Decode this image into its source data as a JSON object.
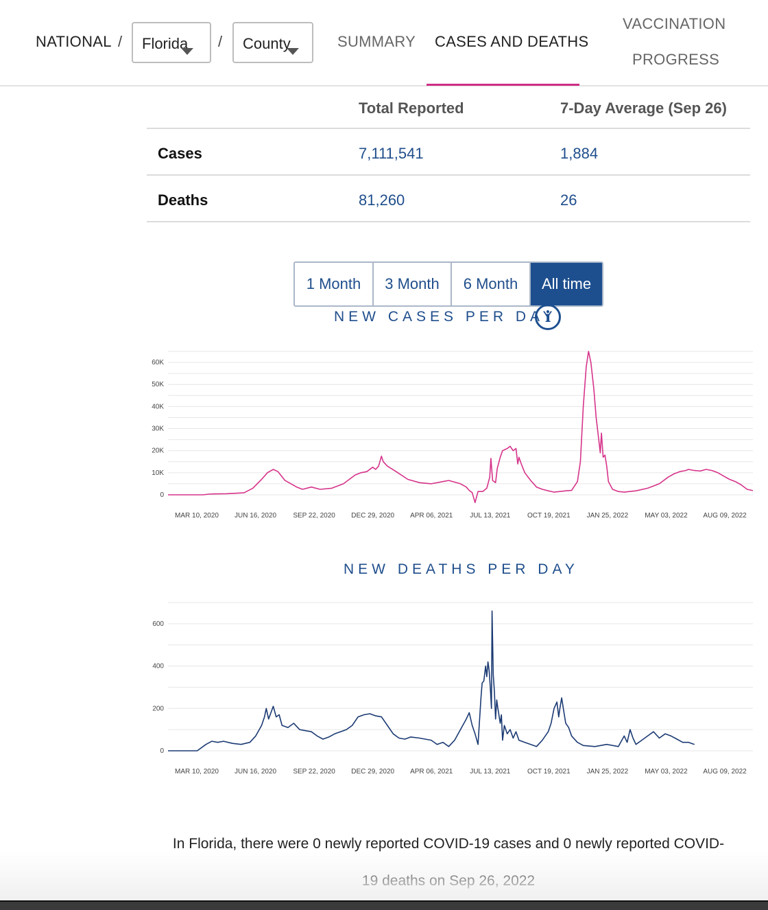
{
  "nav": {
    "national": "NATIONAL",
    "separator": "/",
    "state_select": "Florida",
    "county_select": "County",
    "tabs": [
      {
        "label": "SUMMARY"
      },
      {
        "label": "CASES AND DEATHS"
      },
      {
        "label_line1": "VACCINATION",
        "label_line2": "PROGRESS"
      }
    ]
  },
  "summary_table": {
    "headers": [
      "",
      "Total Reported",
      "7-Day Average (Sep 26)"
    ],
    "rows": [
      {
        "label": "Cases",
        "total": "7,111,541",
        "avg": "1,884"
      },
      {
        "label": "Deaths",
        "total": "81,260",
        "avg": "26"
      }
    ]
  },
  "range_buttons": [
    "1 Month",
    "3 Month",
    "6 Month",
    "All time"
  ],
  "range_selected": "All time",
  "info_icon_glyph": "i",
  "footer": {
    "line1": "In Florida, there were 0 newly reported COVID-19 cases and 0 newly reported COVID-",
    "line2": "19 deaths on Sep 26, 2022"
  },
  "colors": {
    "cases_line": "#d6338a",
    "deaths_line": "#1b3a73",
    "accent": "#1d4f8f"
  },
  "chart_data": [
    {
      "type": "line",
      "title": "NEW CASES PER DAY",
      "x_ticks": [
        "MAR 10, 2020",
        "JUN 16, 2020",
        "SEP 22, 2020",
        "DEC 29, 2020",
        "APR 06, 2021",
        "JUL 13, 2021",
        "OCT 19, 2021",
        "JAN 25, 2022",
        "MAY 03, 2022",
        "AUG 09, 2022"
      ],
      "y_ticks": [
        0,
        10000,
        20000,
        30000,
        40000,
        50000,
        60000
      ],
      "y_tick_labels": [
        "0",
        "10K",
        "20K",
        "30K",
        "40K",
        "50K",
        "60K"
      ],
      "ylim": [
        0,
        65000
      ],
      "x_range_days": [
        -10,
        990
      ],
      "series": [
        {
          "name": "New cases",
          "points": [
            [
              -10,
              0
            ],
            [
              20,
              0
            ],
            [
              50,
              0
            ],
            [
              60,
              300
            ],
            [
              70,
              400
            ],
            [
              90,
              500
            ],
            [
              120,
              900
            ],
            [
              135,
              3000
            ],
            [
              150,
              7000
            ],
            [
              160,
              10000
            ],
            [
              170,
              11500
            ],
            [
              178,
              10500
            ],
            [
              190,
              6500
            ],
            [
              210,
              3500
            ],
            [
              220,
              2500
            ],
            [
              235,
              3500
            ],
            [
              250,
              2500
            ],
            [
              270,
              3000
            ],
            [
              290,
              5000
            ],
            [
              300,
              7000
            ],
            [
              310,
              9000
            ],
            [
              320,
              10000
            ],
            [
              330,
              10500
            ],
            [
              340,
              12500
            ],
            [
              345,
              11500
            ],
            [
              350,
              13000
            ],
            [
              355,
              17500
            ],
            [
              358,
              15000
            ],
            [
              365,
              13000
            ],
            [
              380,
              10500
            ],
            [
              400,
              7000
            ],
            [
              420,
              5500
            ],
            [
              440,
              5000
            ],
            [
              460,
              6000
            ],
            [
              470,
              6500
            ],
            [
              490,
              5000
            ],
            [
              500,
              3500
            ],
            [
              505,
              2000
            ],
            [
              510,
              1000
            ],
            [
              515,
              -3500
            ],
            [
              520,
              1500
            ],
            [
              528,
              1500
            ],
            [
              535,
              3000
            ],
            [
              540,
              8000
            ],
            [
              542,
              16500
            ],
            [
              545,
              6500
            ],
            [
              550,
              5500
            ],
            [
              553,
              12000
            ],
            [
              558,
              17000
            ],
            [
              562,
              20000
            ],
            [
              570,
              21000
            ],
            [
              575,
              22000
            ],
            [
              580,
              20000
            ],
            [
              585,
              21000
            ],
            [
              588,
              14000
            ],
            [
              590,
              17000
            ],
            [
              594,
              14000
            ],
            [
              600,
              10000
            ],
            [
              610,
              6500
            ],
            [
              620,
              3500
            ],
            [
              630,
              2500
            ],
            [
              640,
              1800
            ],
            [
              650,
              1200
            ],
            [
              660,
              1500
            ],
            [
              670,
              1800
            ],
            [
              680,
              2000
            ],
            [
              690,
              6000
            ],
            [
              695,
              15000
            ],
            [
              700,
              40000
            ],
            [
              705,
              58000
            ],
            [
              709,
              65000
            ],
            [
              713,
              60000
            ],
            [
              718,
              48000
            ],
            [
              722,
              35000
            ],
            [
              726,
              26000
            ],
            [
              729,
              19000
            ],
            [
              731,
              28000
            ],
            [
              734,
              17000
            ],
            [
              737,
              18000
            ],
            [
              740,
              13000
            ],
            [
              743,
              6000
            ],
            [
              750,
              2500
            ],
            [
              760,
              1500
            ],
            [
              770,
              1200
            ],
            [
              790,
              1800
            ],
            [
              810,
              3000
            ],
            [
              830,
              5000
            ],
            [
              845,
              8000
            ],
            [
              855,
              9500
            ],
            [
              865,
              10500
            ],
            [
              875,
              11000
            ],
            [
              880,
              11500
            ],
            [
              890,
              11000
            ],
            [
              900,
              10800
            ],
            [
              910,
              11500
            ],
            [
              920,
              11000
            ],
            [
              930,
              10000
            ],
            [
              940,
              8500
            ],
            [
              950,
              7000
            ],
            [
              960,
              6000
            ],
            [
              970,
              4500
            ],
            [
              980,
              2500
            ],
            [
              990,
              1900
            ]
          ]
        }
      ]
    },
    {
      "type": "line",
      "title": "NEW DEATHS PER DAY",
      "x_ticks": [
        "MAR 10, 2020",
        "JUN 16, 2020",
        "SEP 22, 2020",
        "DEC 29, 2020",
        "APR 06, 2021",
        "JUL 13, 2021",
        "OCT 19, 2021",
        "JAN 25, 2022",
        "MAY 03, 2022",
        "AUG 09, 2022"
      ],
      "y_ticks": [
        0,
        200,
        400,
        600
      ],
      "y_tick_labels": [
        "0",
        "200",
        "400",
        "600"
      ],
      "ylim": [
        0,
        700
      ],
      "x_range_days": [
        -10,
        990
      ],
      "series": [
        {
          "name": "New deaths",
          "points": [
            [
              -10,
              0
            ],
            [
              40,
              0
            ],
            [
              55,
              30
            ],
            [
              65,
              45
            ],
            [
              75,
              40
            ],
            [
              85,
              45
            ],
            [
              100,
              35
            ],
            [
              115,
              30
            ],
            [
              130,
              40
            ],
            [
              140,
              70
            ],
            [
              150,
              120
            ],
            [
              155,
              160
            ],
            [
              158,
              200
            ],
            [
              162,
              150
            ],
            [
              166,
              180
            ],
            [
              170,
              210
            ],
            [
              175,
              160
            ],
            [
              180,
              170
            ],
            [
              185,
              120
            ],
            [
              195,
              110
            ],
            [
              205,
              130
            ],
            [
              215,
              100
            ],
            [
              225,
              95
            ],
            [
              235,
              90
            ],
            [
              245,
              70
            ],
            [
              255,
              55
            ],
            [
              265,
              65
            ],
            [
              275,
              80
            ],
            [
              285,
              90
            ],
            [
              295,
              100
            ],
            [
              305,
              120
            ],
            [
              315,
              160
            ],
            [
              325,
              170
            ],
            [
              335,
              175
            ],
            [
              345,
              165
            ],
            [
              355,
              160
            ],
            [
              365,
              120
            ],
            [
              375,
              80
            ],
            [
              385,
              60
            ],
            [
              395,
              55
            ],
            [
              405,
              65
            ],
            [
              420,
              60
            ],
            [
              440,
              50
            ],
            [
              450,
              30
            ],
            [
              460,
              40
            ],
            [
              470,
              20
            ],
            [
              480,
              50
            ],
            [
              490,
              100
            ],
            [
              500,
              150
            ],
            [
              505,
              180
            ],
            [
              510,
              120
            ],
            [
              515,
              80
            ],
            [
              520,
              30
            ],
            [
              525,
              250
            ],
            [
              527,
              320
            ],
            [
              530,
              330
            ],
            [
              533,
              400
            ],
            [
              535,
              350
            ],
            [
              537,
              420
            ],
            [
              539,
              380
            ],
            [
              541,
              300
            ],
            [
              543,
              200
            ],
            [
              544,
              660
            ],
            [
              546,
              360
            ],
            [
              548,
              280
            ],
            [
              550,
              150
            ],
            [
              552,
              240
            ],
            [
              554,
              200
            ],
            [
              558,
              130
            ],
            [
              560,
              170
            ],
            [
              562,
              50
            ],
            [
              565,
              120
            ],
            [
              570,
              80
            ],
            [
              575,
              100
            ],
            [
              580,
              60
            ],
            [
              585,
              90
            ],
            [
              590,
              50
            ],
            [
              600,
              40
            ],
            [
              610,
              30
            ],
            [
              620,
              20
            ],
            [
              630,
              50
            ],
            [
              640,
              90
            ],
            [
              645,
              130
            ],
            [
              650,
              200
            ],
            [
              655,
              230
            ],
            [
              658,
              160
            ],
            [
              660,
              200
            ],
            [
              663,
              250
            ],
            [
              667,
              180
            ],
            [
              670,
              130
            ],
            [
              675,
              110
            ],
            [
              680,
              70
            ],
            [
              690,
              40
            ],
            [
              700,
              25
            ],
            [
              720,
              20
            ],
            [
              740,
              30
            ],
            [
              760,
              20
            ],
            [
              770,
              70
            ],
            [
              775,
              40
            ],
            [
              780,
              100
            ],
            [
              785,
              60
            ],
            [
              790,
              30
            ],
            [
              800,
              50
            ],
            [
              810,
              70
            ],
            [
              820,
              90
            ],
            [
              830,
              60
            ],
            [
              840,
              80
            ],
            [
              850,
              70
            ],
            [
              860,
              55
            ],
            [
              870,
              40
            ],
            [
              880,
              40
            ],
            [
              890,
              30
            ]
          ]
        }
      ]
    }
  ]
}
